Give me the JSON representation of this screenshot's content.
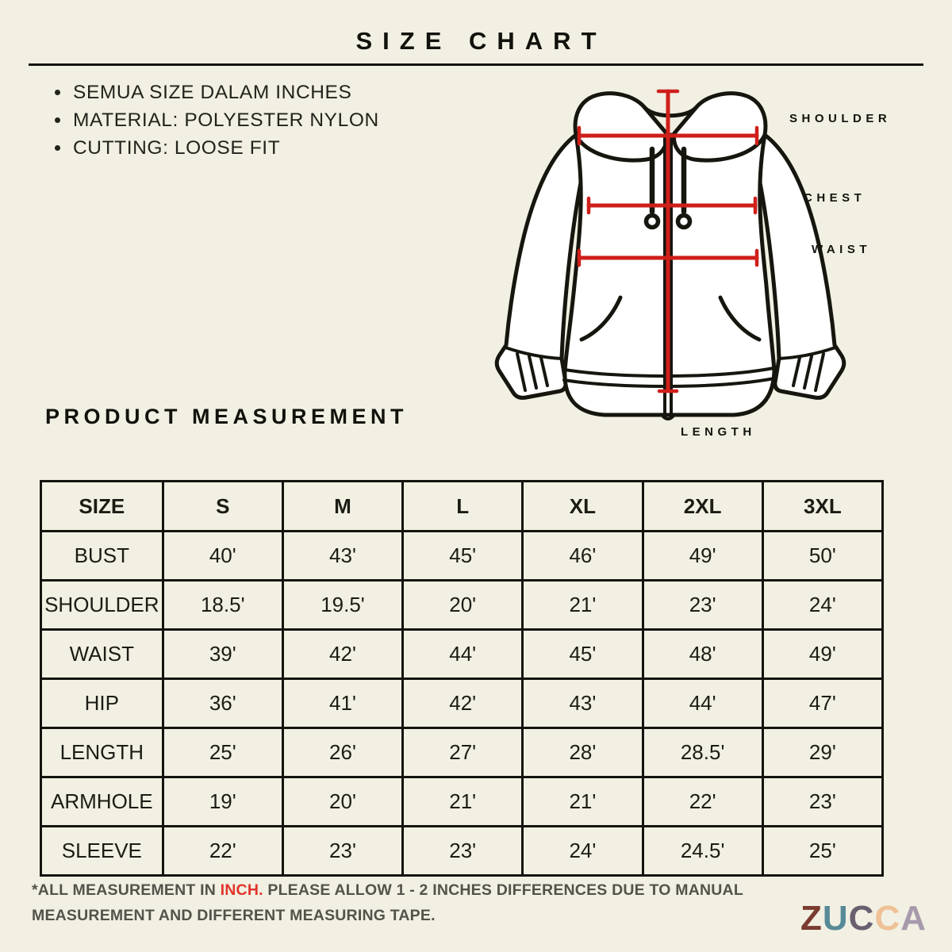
{
  "title": "SIZE CHART",
  "intro": {
    "bullets": [
      "SEMUA SIZE DALAM INCHES",
      "MATERIAL: POLYESTER NYLON",
      "CUTTING: LOOSE FIT"
    ]
  },
  "diagram": {
    "labels": {
      "shoulder": "SHOULDER",
      "chest": "CHEST",
      "waist": "WAIST",
      "length": "LENGTH"
    },
    "line_color": "#cf1f1a"
  },
  "section_title": "PRODUCT MEASUREMENT",
  "chart_data": {
    "type": "table",
    "columns": [
      "SIZE",
      "S",
      "M",
      "L",
      "XL",
      "2XL",
      "3XL"
    ],
    "rows": [
      {
        "label": "BUST",
        "values": [
          "40'",
          "43'",
          "45'",
          "46'",
          "49'",
          "50'"
        ]
      },
      {
        "label": "SHOULDER",
        "values": [
          "18.5'",
          "19.5'",
          "20'",
          "21'",
          "23'",
          "24'"
        ]
      },
      {
        "label": "WAIST",
        "values": [
          "39'",
          "42'",
          "44'",
          "45'",
          "48'",
          "49'"
        ]
      },
      {
        "label": "HIP",
        "values": [
          "36'",
          "41'",
          "42'",
          "43'",
          "44'",
          "47'"
        ]
      },
      {
        "label": "LENGTH",
        "values": [
          "25'",
          "26'",
          "27'",
          "28'",
          "28.5'",
          "29'"
        ]
      },
      {
        "label": "ARMHOLE",
        "values": [
          "19'",
          "20'",
          "21'",
          "21'",
          "22'",
          "23'"
        ]
      },
      {
        "label": "SLEEVE",
        "values": [
          "22'",
          "23'",
          "23'",
          "24'",
          "24.5'",
          "25'"
        ]
      }
    ]
  },
  "footnote": {
    "prefix": "*ALL MEASUREMENT IN ",
    "highlight": "INCH.",
    "suffix": " PLEASE ALLOW 1 - 2 INCHES DIFFERENCES DUE TO MANUAL MEASUREMENT AND DIFFERENT MEASURING TAPE.",
    "highlight_color": "#e1342c"
  },
  "logo": {
    "letters": [
      {
        "char": "Z",
        "color": "#7a3c2f"
      },
      {
        "char": "U",
        "color": "#578a97"
      },
      {
        "char": "C",
        "color": "#6a5f70"
      },
      {
        "char": "C",
        "color": "#f0c096"
      },
      {
        "char": "A",
        "color": "#a89aad"
      }
    ]
  }
}
